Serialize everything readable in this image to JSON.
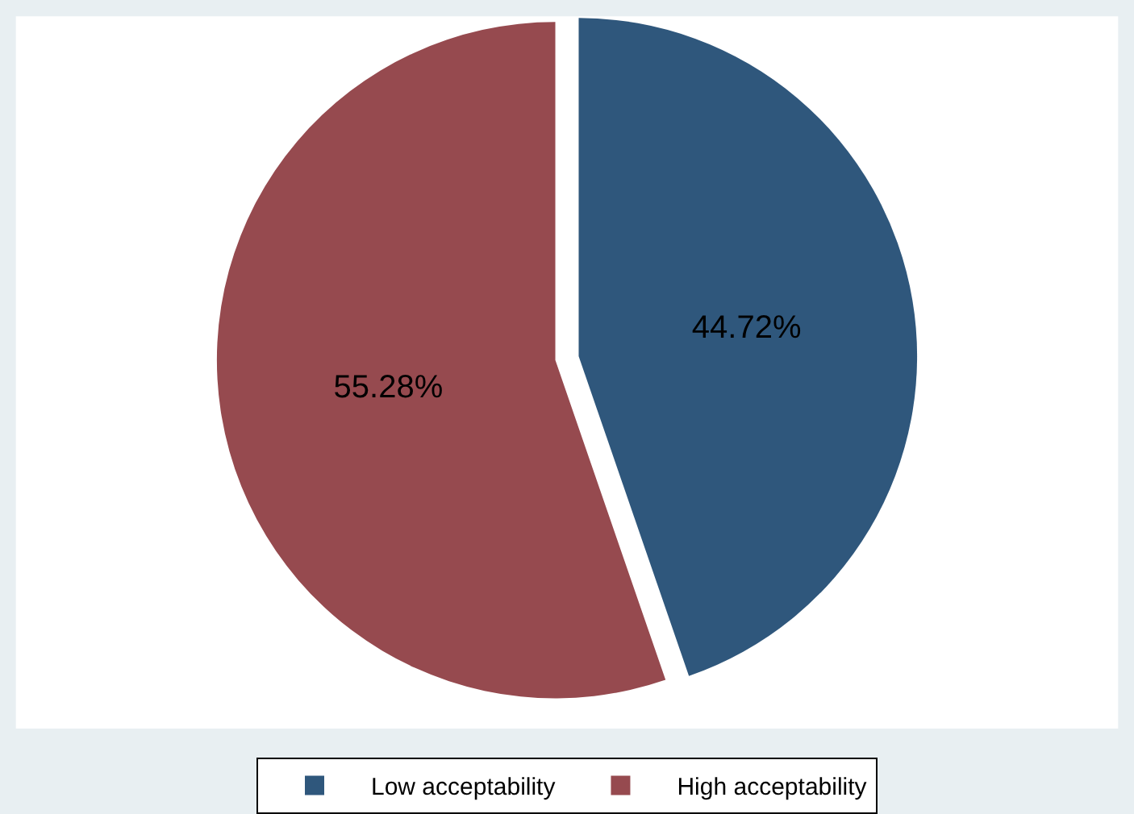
{
  "chart_data": {
    "type": "pie",
    "categories": [
      "Low acceptability",
      "High acceptability"
    ],
    "values": [
      44.72,
      55.28
    ],
    "colors": [
      "#2f577c",
      "#964a4f"
    ],
    "value_labels": [
      "44.72%",
      "55.28%"
    ],
    "legend": "bottom"
  }
}
